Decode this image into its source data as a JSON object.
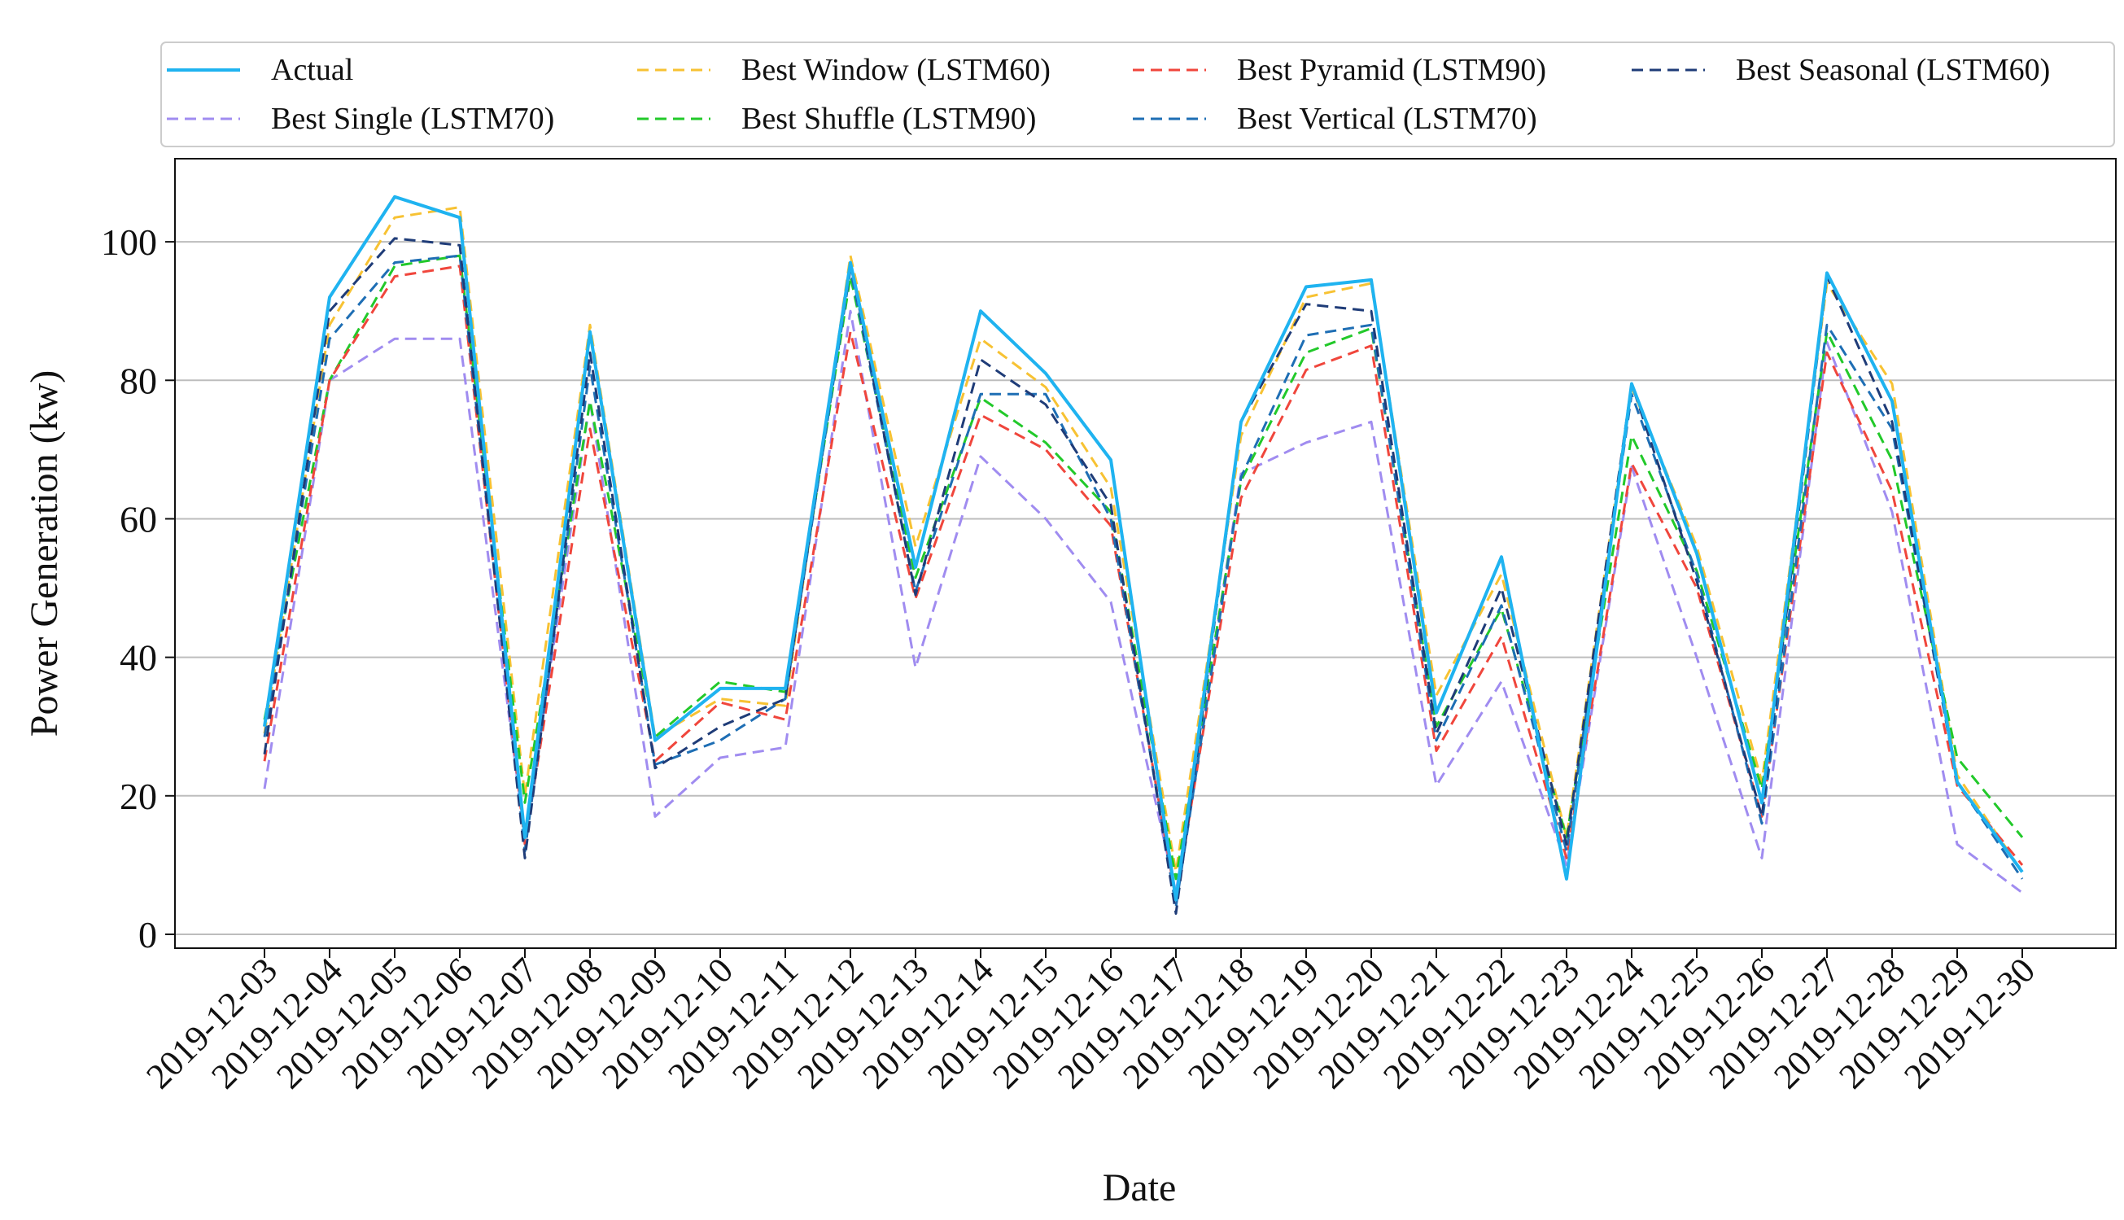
{
  "chart_data": {
    "type": "line",
    "xlabel": "Date",
    "ylabel": "Power Generation (kw)",
    "ylim": [
      -2,
      112
    ],
    "yticks": [
      0,
      20,
      40,
      60,
      80,
      100
    ],
    "grid": "horizontal",
    "legend_position": "top",
    "categories": [
      "2019-12-03",
      "2019-12-04",
      "2019-12-05",
      "2019-12-06",
      "2019-12-07",
      "2019-12-08",
      "2019-12-09",
      "2019-12-10",
      "2019-12-11",
      "2019-12-12",
      "2019-12-13",
      "2019-12-14",
      "2019-12-15",
      "2019-12-16",
      "2019-12-17",
      "2019-12-18",
      "2019-12-19",
      "2019-12-20",
      "2019-12-21",
      "2019-12-22",
      "2019-12-23",
      "2019-12-24",
      "2019-12-25",
      "2019-12-26",
      "2019-12-27",
      "2019-12-28",
      "2019-12-29",
      "2019-12-30"
    ],
    "series": [
      {
        "name": "Actual",
        "color": "#1fb3f0",
        "dash": "solid",
        "values": [
          30,
          92,
          106.5,
          103.5,
          14,
          87,
          28,
          35.5,
          35.5,
          97,
          53,
          90,
          81,
          68.5,
          5,
          74,
          93.5,
          94.5,
          32,
          54.5,
          8,
          79.5,
          55,
          19,
          95.5,
          77,
          22,
          9
        ]
      },
      {
        "name": "Best Single (LSTM70)",
        "color": "#a08cf0",
        "dash": "dashed",
        "values": [
          21,
          80,
          86,
          86,
          14,
          77,
          17,
          25.5,
          27,
          90,
          38.5,
          69,
          60,
          48,
          6,
          66.5,
          71,
          74,
          21.5,
          36.5,
          10,
          67.5,
          40,
          11,
          85.5,
          61,
          13,
          6
        ]
      },
      {
        "name": "Best Window (LSTM60)",
        "color": "#f7c233",
        "dash": "dashed",
        "values": [
          29,
          88,
          103.5,
          105,
          20,
          88,
          28.5,
          34,
          33,
          98,
          56,
          86,
          79,
          64.5,
          9,
          72,
          92,
          94,
          34.5,
          52,
          14,
          79,
          56,
          22,
          94,
          79.5,
          23,
          9
        ]
      },
      {
        "name": "Best Shuffle (LSTM90)",
        "color": "#22c92a",
        "dash": "dashed",
        "values": [
          31,
          80,
          96.5,
          98,
          19,
          77,
          28.5,
          36.5,
          35,
          95,
          51.5,
          77.5,
          71,
          61,
          8,
          65.5,
          84,
          87.5,
          30,
          47,
          14,
          72,
          52.5,
          21,
          87,
          68.5,
          25.5,
          14
        ]
      },
      {
        "name": "Best Pyramid (LSTM90)",
        "color": "#f0463c",
        "dash": "dashed",
        "values": [
          25,
          80,
          95,
          96.5,
          13,
          73,
          25,
          33.5,
          31,
          87,
          48.5,
          75,
          70,
          59,
          5,
          63,
          81.5,
          85,
          26.5,
          43,
          11,
          68,
          50,
          17,
          84,
          64,
          21.5,
          10
        ]
      },
      {
        "name": "Best Vertical (LSTM70)",
        "color": "#1e6eb4",
        "dash": "dashed",
        "values": [
          28.5,
          86,
          97,
          98,
          12,
          82,
          24.5,
          28,
          34,
          96,
          49.5,
          78,
          78,
          60,
          4,
          66,
          86.5,
          88,
          28,
          47.5,
          12,
          78,
          52,
          16,
          88,
          73,
          22,
          8
        ]
      },
      {
        "name": "Best Seasonal (LSTM60)",
        "color": "#1f3c78",
        "dash": "dashed",
        "values": [
          26,
          90,
          100.5,
          99.5,
          11,
          84,
          24,
          30,
          34,
          97,
          49,
          83,
          76.5,
          62,
          3,
          74,
          91,
          90,
          29,
          50,
          13,
          79.5,
          51,
          17,
          95,
          74,
          22,
          9
        ]
      }
    ]
  }
}
